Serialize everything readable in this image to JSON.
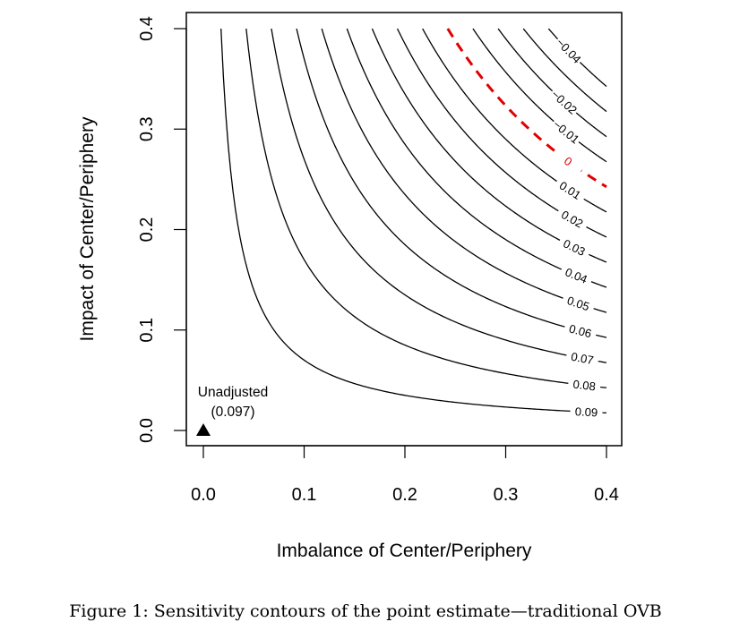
{
  "caption": "Figure 1: Sensitivity contours of the point estimate—traditional OVB",
  "chart_data": {
    "type": "contour",
    "title": "",
    "xlabel": "Imbalance of Center/Periphery",
    "ylabel": "Impact of Center/Periphery",
    "xlim": [
      -0.015,
      0.415
    ],
    "ylim": [
      -0.015,
      0.415
    ],
    "xticks": [
      "0.0",
      "0.1",
      "0.2",
      "0.3",
      "0.4"
    ],
    "yticks": [
      "0.0",
      "0.1",
      "0.2",
      "0.3",
      "0.4"
    ],
    "grid": false,
    "unadjusted_estimate": 0.097,
    "contour_function": "estimate = 0.097 - imbalance * impact",
    "point": {
      "x": 0,
      "y": 0,
      "label": "Unadjusted",
      "value_label": "(0.097)",
      "marker": "triangle"
    },
    "contours": [
      {
        "level": -0.04,
        "label": "−0.04",
        "style": "solid"
      },
      {
        "level": -0.03,
        "label": "",
        "style": "solid"
      },
      {
        "level": -0.02,
        "label": "−0.02",
        "style": "solid"
      },
      {
        "level": -0.01,
        "label": "−0.01",
        "style": "solid"
      },
      {
        "level": 0,
        "label": "0",
        "style": "dashed",
        "color": "#e00000"
      },
      {
        "level": 0.01,
        "label": "0.01",
        "style": "solid"
      },
      {
        "level": 0.02,
        "label": "0.02",
        "style": "solid"
      },
      {
        "level": 0.03,
        "label": "0.03",
        "style": "solid"
      },
      {
        "level": 0.04,
        "label": "0.04",
        "style": "solid"
      },
      {
        "level": 0.05,
        "label": "0.05",
        "style": "solid"
      },
      {
        "level": 0.06,
        "label": "0.06",
        "style": "solid"
      },
      {
        "level": 0.07,
        "label": "0.07",
        "style": "solid"
      },
      {
        "level": 0.08,
        "label": "0.08",
        "style": "solid"
      },
      {
        "level": 0.09,
        "label": "0.09",
        "style": "solid"
      }
    ]
  }
}
